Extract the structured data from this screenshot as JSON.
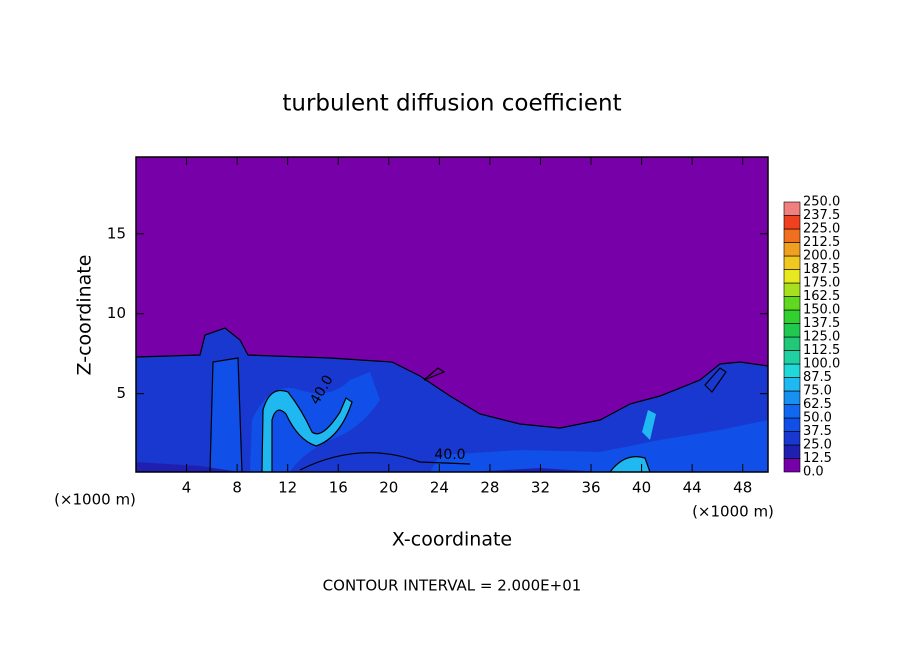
{
  "chart_data": {
    "type": "contour",
    "title": "turbulent diffusion coefficient",
    "xlabel": "X-coordinate",
    "ylabel": "Z-coordinate",
    "x_unit": "(×1000 m)",
    "footer": "CONTOUR INTERVAL = 2.000E+01",
    "contour_labels": [
      "40.0",
      "40.0"
    ],
    "xlim": [
      0,
      50
    ],
    "xticks": [
      4,
      8,
      12,
      16,
      20,
      24,
      28,
      32,
      36,
      40,
      44,
      48
    ],
    "ylim": [
      0.1,
      19.8
    ],
    "yticks": [
      5,
      10,
      15
    ],
    "colorbar": {
      "ticks": [
        {
          "value": 0,
          "label": "0.0"
        },
        12.5,
        {
          "value": 25,
          "label": "25.0"
        },
        37.5,
        {
          "value": 50,
          "label": "50.0"
        },
        62.5,
        {
          "value": 75,
          "label": "75.0"
        },
        87.5,
        {
          "value": 100,
          "label": "100.0"
        },
        112.5,
        {
          "value": 125,
          "label": "125.0"
        },
        137.5,
        {
          "value": 150,
          "label": "150.0"
        },
        162.5,
        {
          "value": 175,
          "label": "175.0"
        },
        187.5,
        {
          "value": 200,
          "label": "200.0"
        },
        212.5,
        {
          "value": 225,
          "label": "225.0"
        },
        237.5,
        {
          "value": 250,
          "label": "250.0"
        }
      ],
      "colors": [
        "#7800a8",
        "#2020b0",
        "#1838d0",
        "#1050e8",
        "#1068f0",
        "#1890f0",
        "#20b8f0",
        "#20d8d8",
        "#20d0a0",
        "#20c878",
        "#20c850",
        "#30d030",
        "#60d820",
        "#a8e020",
        "#e8e820",
        "#f0c820",
        "#f0a020",
        "#f07020",
        "#f04020",
        "#f08080"
      ]
    }
  }
}
